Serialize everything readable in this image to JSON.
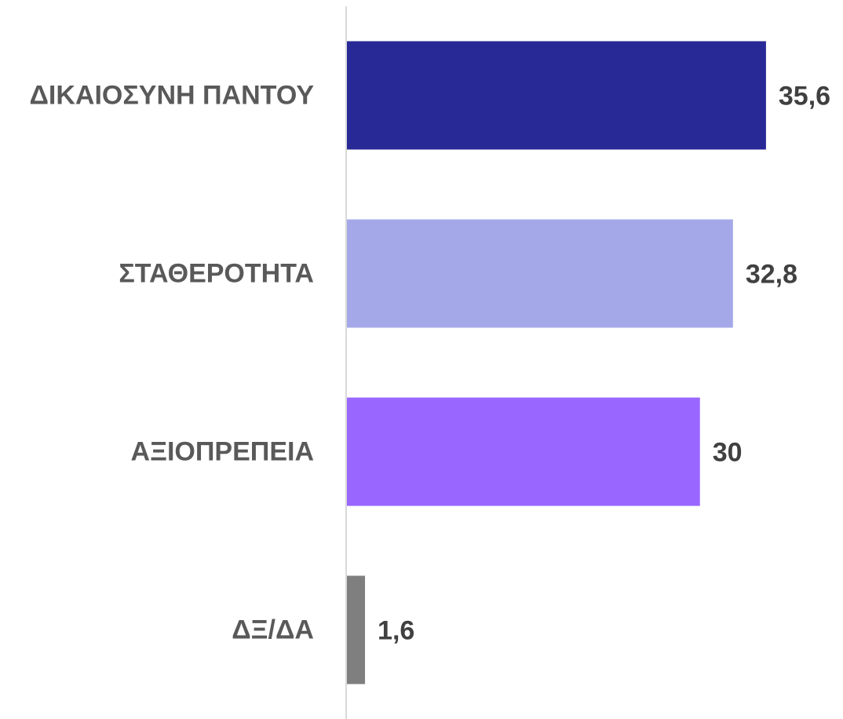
{
  "chart_data": {
    "type": "bar",
    "orientation": "horizontal",
    "categories": [
      "ΔΙΚΑΙΟΣΥΝΗ ΠΑΝΤΟΥ",
      "ΣΤΑΘΕΡΟΤΗΤΑ",
      "ΑΞΙΟΠΡΕΠΕΙΑ",
      "ΔΞ/ΔΑ"
    ],
    "values": [
      35.6,
      32.8,
      30,
      1.6
    ],
    "value_labels": [
      "35,6",
      "32,8",
      "30",
      "1,6"
    ],
    "colors": [
      "#282896",
      "#a5a8e8",
      "#9966ff",
      "#7f7f7f"
    ],
    "xlim": [
      0,
      40
    ]
  }
}
